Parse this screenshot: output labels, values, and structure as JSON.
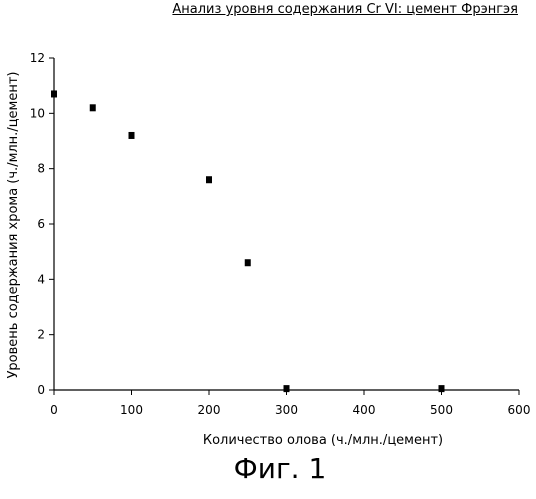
{
  "chart_data": {
    "type": "scatter",
    "title": "Анализ уровня содержания Cr VI: цемент Фрэнгэя",
    "xlabel": "Количество олова (ч./млн./цемент)",
    "ylabel": "Уровень содержания хрома (ч./млн./цемент)",
    "xlim": [
      0,
      600
    ],
    "ylim": [
      0,
      12
    ],
    "xticks": [
      0,
      100,
      200,
      300,
      400,
      500,
      600
    ],
    "yticks": [
      0,
      2,
      4,
      6,
      8,
      10,
      12
    ],
    "xtick_labels": [
      "0",
      "100",
      "200",
      "300",
      "400",
      "500",
      "600"
    ],
    "ytick_labels": [
      "0",
      "2",
      "4",
      "6",
      "8",
      "10",
      "12"
    ],
    "grid": false,
    "series": [
      {
        "x": [
          0,
          50,
          100,
          200,
          250,
          300,
          500
        ],
        "y": [
          10.7,
          10.2,
          9.2,
          7.6,
          4.6,
          0.05,
          0.05
        ],
        "marker_color": "#000000"
      }
    ]
  },
  "figure_caption": "Фиг. 1"
}
